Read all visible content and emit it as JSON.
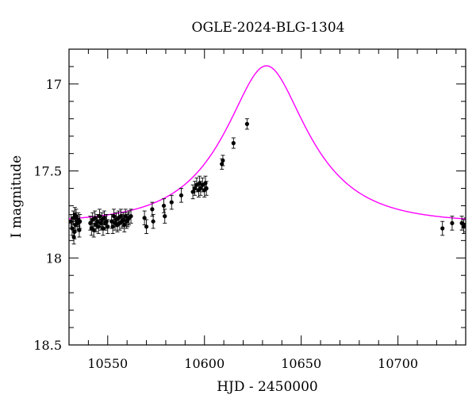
{
  "chart_data": {
    "type": "scatter",
    "title": "OGLE-2024-BLG-1304",
    "xlabel": "HJD - 2450000",
    "ylabel": "I magnitude",
    "xlim": [
      10530,
      10735
    ],
    "ylim": [
      18.5,
      16.8
    ],
    "y_inverted": true,
    "x_ticks": [
      10550,
      10600,
      10650,
      10700
    ],
    "y_ticks": [
      17,
      17.5,
      18,
      18.5
    ],
    "grid": false,
    "model": {
      "color": "#ff00ff",
      "t0": 10632,
      "tE": 38,
      "u0": 0.47,
      "baseline_mag": 17.8
    },
    "data_color": "#000000",
    "series": [
      {
        "points": [
          [
            10531,
            17.79,
            0.04
          ],
          [
            10531.6,
            17.83,
            0.04
          ],
          [
            10532.2,
            17.77,
            0.04
          ],
          [
            10532.8,
            17.85,
            0.04
          ],
          [
            10533.3,
            17.81,
            0.04
          ],
          [
            10533.7,
            17.76,
            0.04
          ],
          [
            10534.2,
            17.8,
            0.04
          ],
          [
            10534.8,
            17.78,
            0.04
          ],
          [
            10535.3,
            17.84,
            0.04
          ],
          [
            10532.5,
            17.88,
            0.04
          ],
          [
            10533,
            17.75,
            0.04
          ],
          [
            10535.6,
            17.79,
            0.04
          ],
          [
            10541,
            17.8,
            0.04
          ],
          [
            10541.6,
            17.83,
            0.04
          ],
          [
            10542.2,
            17.78,
            0.04
          ],
          [
            10542.8,
            17.84,
            0.04
          ],
          [
            10543.4,
            17.77,
            0.04
          ],
          [
            10544,
            17.81,
            0.04
          ],
          [
            10544.6,
            17.79,
            0.04
          ],
          [
            10545.2,
            17.82,
            0.04
          ],
          [
            10545.8,
            17.76,
            0.04
          ],
          [
            10546.4,
            17.8,
            0.04
          ],
          [
            10547,
            17.78,
            0.04
          ],
          [
            10547.6,
            17.83,
            0.04
          ],
          [
            10548.2,
            17.77,
            0.04
          ],
          [
            10548.8,
            17.8,
            0.04
          ],
          [
            10549.4,
            17.79,
            0.04
          ],
          [
            10550,
            17.82,
            0.04
          ],
          [
            10552,
            17.79,
            0.04
          ],
          [
            10552.6,
            17.82,
            0.04
          ],
          [
            10553.2,
            17.76,
            0.04
          ],
          [
            10553.8,
            17.8,
            0.04
          ],
          [
            10554.4,
            17.78,
            0.04
          ],
          [
            10555,
            17.81,
            0.04
          ],
          [
            10555.6,
            17.77,
            0.04
          ],
          [
            10556.2,
            17.8,
            0.04
          ],
          [
            10556.8,
            17.76,
            0.04
          ],
          [
            10557.4,
            17.79,
            0.04
          ],
          [
            10558,
            17.78,
            0.04
          ],
          [
            10558.6,
            17.81,
            0.04
          ],
          [
            10559.2,
            17.76,
            0.04
          ],
          [
            10559.8,
            17.79,
            0.04
          ],
          [
            10560.4,
            17.78,
            0.04
          ],
          [
            10561,
            17.77,
            0.04
          ],
          [
            10562,
            17.76,
            0.04
          ],
          [
            10569,
            17.77,
            0.04
          ],
          [
            10570,
            17.82,
            0.04
          ],
          [
            10573,
            17.72,
            0.04
          ],
          [
            10573.5,
            17.79,
            0.04
          ],
          [
            10579,
            17.7,
            0.04
          ],
          [
            10579.5,
            17.76,
            0.04
          ],
          [
            10583,
            17.68,
            0.04
          ],
          [
            10588,
            17.64,
            0.04
          ],
          [
            10594,
            17.62,
            0.04
          ],
          [
            10595,
            17.6,
            0.04
          ],
          [
            10596,
            17.58,
            0.04
          ],
          [
            10597,
            17.61,
            0.04
          ],
          [
            10597.5,
            17.57,
            0.04
          ],
          [
            10598,
            17.6,
            0.04
          ],
          [
            10599,
            17.58,
            0.04
          ],
          [
            10600,
            17.61,
            0.04
          ],
          [
            10600.5,
            17.57,
            0.04
          ],
          [
            10601,
            17.6,
            0.04
          ],
          [
            10609,
            17.46,
            0.03
          ],
          [
            10609.5,
            17.44,
            0.03
          ],
          [
            10615,
            17.34,
            0.03
          ],
          [
            10622,
            17.23,
            0.03
          ],
          [
            10723,
            17.83,
            0.04
          ],
          [
            10728,
            17.8,
            0.04
          ],
          [
            10733,
            17.8,
            0.04
          ],
          [
            10734,
            17.82,
            0.04
          ],
          [
            10735,
            17.81,
            0.04
          ]
        ]
      }
    ]
  }
}
